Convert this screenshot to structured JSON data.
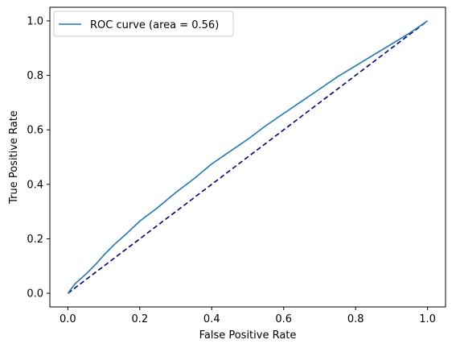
{
  "chart_data": {
    "type": "line",
    "title": "",
    "xlabel": "False Positive Rate",
    "ylabel": "True Positive Rate",
    "xlim": [
      -0.05,
      1.05
    ],
    "ylim": [
      -0.05,
      1.05
    ],
    "xticks": [
      0.0,
      0.2,
      0.4,
      0.6,
      0.8,
      1.0
    ],
    "yticks": [
      0.0,
      0.2,
      0.4,
      0.6,
      0.8,
      1.0
    ],
    "xtick_labels": [
      "0.0",
      "0.2",
      "0.4",
      "0.6",
      "0.8",
      "1.0"
    ],
    "ytick_labels": [
      "0.0",
      "0.2",
      "0.4",
      "0.6",
      "0.8",
      "1.0"
    ],
    "grid": false,
    "legend_position": "top-left",
    "series": [
      {
        "name": "ROC curve (area = 0.56)",
        "color": "#1f77b4",
        "style": "solid",
        "x": [
          0.0,
          0.02,
          0.05,
          0.08,
          0.1,
          0.13,
          0.16,
          0.2,
          0.25,
          0.3,
          0.35,
          0.4,
          0.45,
          0.5,
          0.55,
          0.6,
          0.65,
          0.7,
          0.75,
          0.8,
          0.85,
          0.9,
          0.95,
          1.0
        ],
        "y": [
          0.0,
          0.035,
          0.07,
          0.11,
          0.14,
          0.18,
          0.215,
          0.265,
          0.315,
          0.37,
          0.42,
          0.475,
          0.52,
          0.565,
          0.615,
          0.66,
          0.705,
          0.75,
          0.795,
          0.835,
          0.875,
          0.915,
          0.955,
          1.0
        ]
      },
      {
        "name": "",
        "color": "#000080",
        "style": "dashed",
        "x": [
          0.0,
          1.0
        ],
        "y": [
          0.0,
          1.0
        ]
      }
    ]
  }
}
